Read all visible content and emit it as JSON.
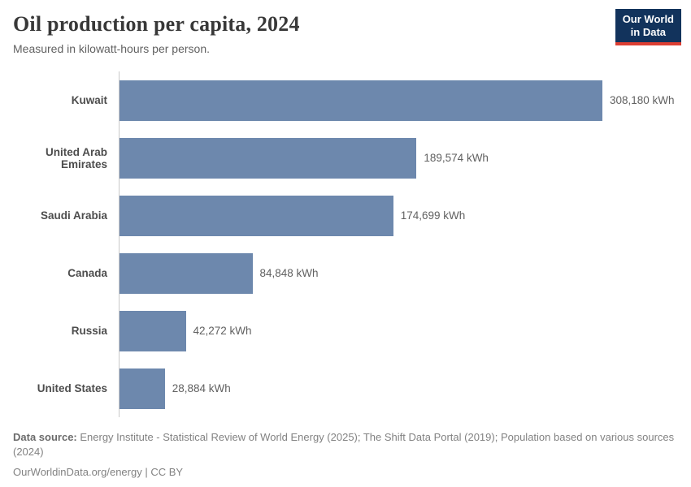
{
  "header": {
    "title": "Oil production per capita, 2024",
    "subtitle": "Measured in kilowatt-hours per person.",
    "logo": {
      "line1": "Our World",
      "line2": "in Data",
      "bg_color": "#12335c",
      "accent_color": "#dc3e32"
    }
  },
  "chart_data": {
    "type": "bar",
    "orientation": "horizontal",
    "title": "Oil production per capita, 2024",
    "subtitle": "Measured in kilowatt-hours per person.",
    "categories": [
      "Kuwait",
      "United Arab Emirates",
      "Saudi Arabia",
      "Canada",
      "Russia",
      "United States"
    ],
    "values": [
      308180,
      189574,
      174699,
      84848,
      42272,
      28884
    ],
    "value_labels": [
      "308,180 kWh",
      "189,574 kWh",
      "174,699 kWh",
      "84,848 kWh",
      "42,272 kWh",
      "28,884 kWh"
    ],
    "unit": "kWh",
    "xlabel": "",
    "ylabel": "",
    "xlim": [
      0,
      308180
    ],
    "grid": false,
    "legend": "none",
    "bar_color": "#6d88ad",
    "axis_line_color": "#c9c9c9"
  },
  "footer": {
    "data_source_label": "Data source:",
    "data_source_text": " Energy Institute - Statistical Review of World Energy (2025); The Shift Data Portal (2019); Population based on various sources (2024)",
    "url_line": "OurWorldinData.org/energy | CC BY"
  }
}
